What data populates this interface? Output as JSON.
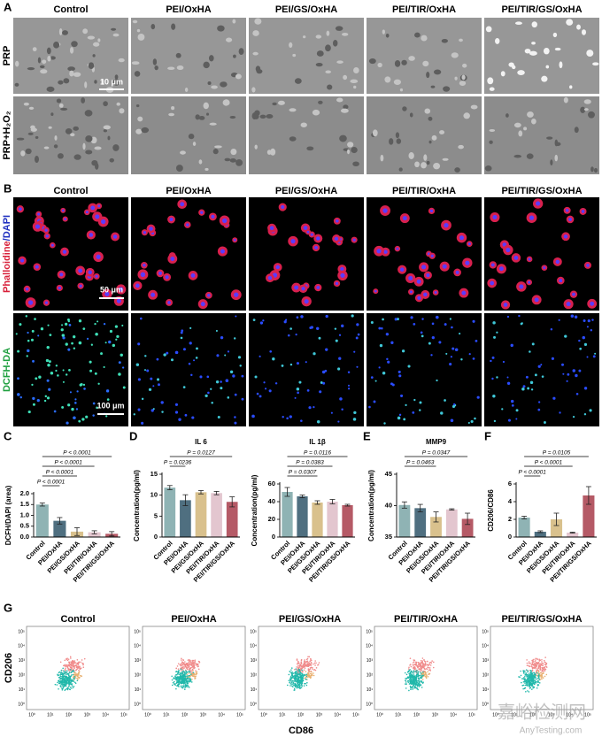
{
  "panel_labels": [
    "A",
    "B",
    "C",
    "D",
    "E",
    "F",
    "G"
  ],
  "panel_a": {
    "columns": [
      "Control",
      "PEI/OxHA",
      "PEI/GS/OxHA",
      "PEI/TIR/OxHA",
      "PEI/TIR/GS/OxHA"
    ],
    "rows": [
      "PRP",
      "PRP+H₂O₂"
    ],
    "scale_bar": "10 μm"
  },
  "panel_b": {
    "columns": [
      "Control",
      "PEI/OxHA",
      "PEI/GS/OxHA",
      "PEI/TIR/OxHA",
      "PEI/TIR/GS/OxHA"
    ],
    "row_1_label": [
      "Phalloidine",
      "/DAPI"
    ],
    "row_2_label": "DCFH-DA",
    "scale_bars": [
      "50 μm",
      "100 μm"
    ]
  },
  "chart_data": [
    {
      "type": "bar",
      "y_label": "DCFH/DAPI (area)",
      "categories": [
        "Control",
        "PEI/OxHA",
        "PEI/GS/OxHA",
        "PEI/TIR/OxHA",
        "PEI/TIR/GS/OxHA"
      ],
      "values": [
        1.5,
        0.75,
        0.25,
        0.22,
        0.15
      ],
      "errors": [
        0.07,
        0.15,
        0.18,
        0.07,
        0.1
      ],
      "colors": [
        "#8fb3b4",
        "#4f6f80",
        "#d9c18d",
        "#e3c6cf",
        "#b55a66"
      ],
      "ylim": [
        0,
        2
      ],
      "yticks": [
        {
          "value": 0,
          "label": "0.0"
        },
        0.5,
        {
          "value": 1,
          "label": "1.0"
        },
        1.5,
        {
          "value": 2,
          "label": "2.0"
        }
      ],
      "annotations": [
        {
          "label": "P < 0.0001",
          "span": [
            0,
            4
          ]
        },
        {
          "label": "P < 0.0001",
          "span": [
            0,
            3
          ]
        },
        {
          "label": "P < 0.0001",
          "span": [
            0,
            2
          ]
        },
        {
          "label": "P < 0.0001",
          "span": [
            0,
            1
          ]
        }
      ]
    },
    {
      "type": "bar",
      "title": "IL 6",
      "y_label": "Concentration(pg/ml)",
      "categories": [
        "Control",
        "PEI/OxHA",
        "PEI/GS/OxHA",
        "PEI/TIR/OxHA",
        "PEI/TIR/GS/OxHA"
      ],
      "values": [
        11.8,
        8.8,
        10.7,
        10.5,
        8.4
      ],
      "errors": [
        0.5,
        1.3,
        0.4,
        0.4,
        1.2
      ],
      "colors": [
        "#8fb3b4",
        "#4f6f80",
        "#d9c18d",
        "#e3c6cf",
        "#b55a66"
      ],
      "ylim": [
        0,
        15
      ],
      "yticks": [
        0,
        5,
        10,
        15
      ],
      "annotations": [
        {
          "label": "P = 0.0127",
          "span": [
            0,
            4
          ]
        },
        {
          "label": "P = 0.0236",
          "span": [
            0,
            1
          ]
        }
      ]
    },
    {
      "type": "bar",
      "title": "IL 1β",
      "y_label": "Concentration(pg/ml)",
      "categories": [
        "Control",
        "PEI/OxHA",
        "PEI/GS/OxHA",
        "PEI/TIR/OxHA",
        "PEI/TIR/GS/OxHA"
      ],
      "values": [
        51,
        46,
        39,
        40,
        36
      ],
      "errors": [
        5,
        1.5,
        2,
        2.5,
        1
      ],
      "colors": [
        "#8fb3b4",
        "#4f6f80",
        "#d9c18d",
        "#e3c6cf",
        "#b55a66"
      ],
      "ylim": [
        0,
        60
      ],
      "yticks": [
        0,
        20,
        40,
        60
      ],
      "annotations": [
        {
          "label": "P = 0.0116",
          "span": [
            0,
            4
          ]
        },
        {
          "label": "P = 0.0383",
          "span": [
            0,
            3
          ]
        },
        {
          "label": "P = 0.0307",
          "span": [
            0,
            2
          ]
        }
      ]
    },
    {
      "type": "bar",
      "title": "MMP9",
      "y_label": "Concentration(pg/ml)",
      "categories": [
        "Control",
        "PEI/OxHA",
        "PEI/GS/OxHA",
        "PEI/TIR/OxHA",
        "PEI/TIR/GS/OxHA"
      ],
      "values": [
        40.1,
        39.6,
        38.2,
        39.4,
        37.9
      ],
      "errors": [
        0.5,
        0.6,
        0.8,
        0.1,
        0.9
      ],
      "colors": [
        "#8fb3b4",
        "#4f6f80",
        "#d9c18d",
        "#e3c6cf",
        "#b55a66"
      ],
      "ylim": [
        35,
        45
      ],
      "yticks": [
        35,
        40,
        45
      ],
      "annotations": [
        {
          "label": "P = 0.0347",
          "span": [
            0,
            4
          ]
        },
        {
          "label": "P = 0.0463",
          "span": [
            0,
            2
          ]
        }
      ]
    },
    {
      "type": "bar",
      "y_label": "CD206/CD86",
      "categories": [
        "Control",
        "PEI/OxHA",
        "PEI/GS/OxHA",
        "PEI/TIR/OxHA",
        "PEI/TIR/GS/OxHA"
      ],
      "values": [
        2.2,
        0.6,
        2.0,
        0.5,
        4.7
      ],
      "errors": [
        0.15,
        0.1,
        0.7,
        0.05,
        1.0
      ],
      "colors": [
        "#8fb3b4",
        "#4f6f80",
        "#d9c18d",
        "#e3c6cf",
        "#b55a66"
      ],
      "ylim": [
        0,
        6
      ],
      "yticks": [
        0,
        2,
        4,
        6
      ],
      "annotations": [
        {
          "label": "P = 0.0105",
          "span": [
            0,
            4
          ]
        },
        {
          "label": "P < 0.0001",
          "span": [
            0,
            3
          ]
        },
        {
          "label": "P < 0.0001",
          "span": [
            0,
            1
          ]
        }
      ]
    }
  ],
  "panel_g": {
    "columns": [
      "Control",
      "PEI/OxHA",
      "PEI/GS/OxHA",
      "PEI/TIR/OxHA",
      "PEI/TIR/GS/OxHA"
    ],
    "y_label": "CD206",
    "x_label": "CD86",
    "axis_ticks": [
      "10⁰",
      "10¹",
      "10²",
      "10³",
      "10⁴",
      "10⁵"
    ]
  },
  "watermark": [
    "嘉峪检测网",
    "AnyTesting.com"
  ]
}
